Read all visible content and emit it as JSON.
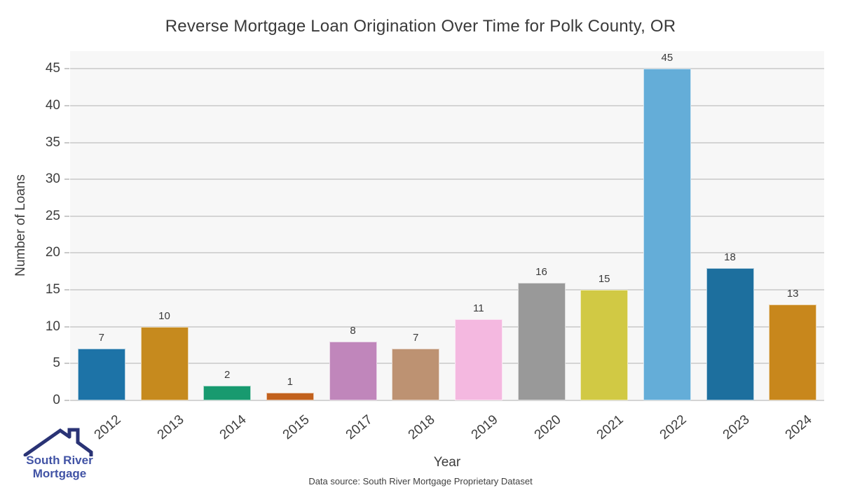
{
  "chart_data": {
    "type": "bar",
    "title": "Reverse Mortgage Loan Origination Over Time for Polk County, OR",
    "xlabel": "Year",
    "ylabel": "Number of Loans",
    "categories": [
      "2012",
      "2013",
      "2014",
      "2015",
      "2017",
      "2018",
      "2019",
      "2020",
      "2021",
      "2022",
      "2023",
      "2024"
    ],
    "values": [
      7,
      10,
      2,
      1,
      8,
      7,
      11,
      16,
      15,
      45,
      18,
      13
    ],
    "bar_colors": [
      "#1d73a7",
      "#c68a1e",
      "#189a6f",
      "#c2611d",
      "#c086bb",
      "#bd9272",
      "#f4b8e0",
      "#999999",
      "#d1c944",
      "#64add8",
      "#1d6f9e",
      "#c8871c"
    ],
    "yticks": [
      0,
      5,
      10,
      15,
      20,
      25,
      30,
      35,
      40,
      45
    ],
    "ylim": [
      0,
      47.4
    ],
    "grid": "horizontal",
    "legend": "none",
    "plot_background": "#f7f7f7",
    "gridline_color": "#d4d4d4"
  },
  "footer": {
    "source_note": "Data source: South River Mortgage Proprietary Dataset"
  },
  "branding": {
    "logo_line1": "South River",
    "logo_line2": "Mortgage",
    "text_color": "#4153a5",
    "roof_color": "#2a3375"
  }
}
